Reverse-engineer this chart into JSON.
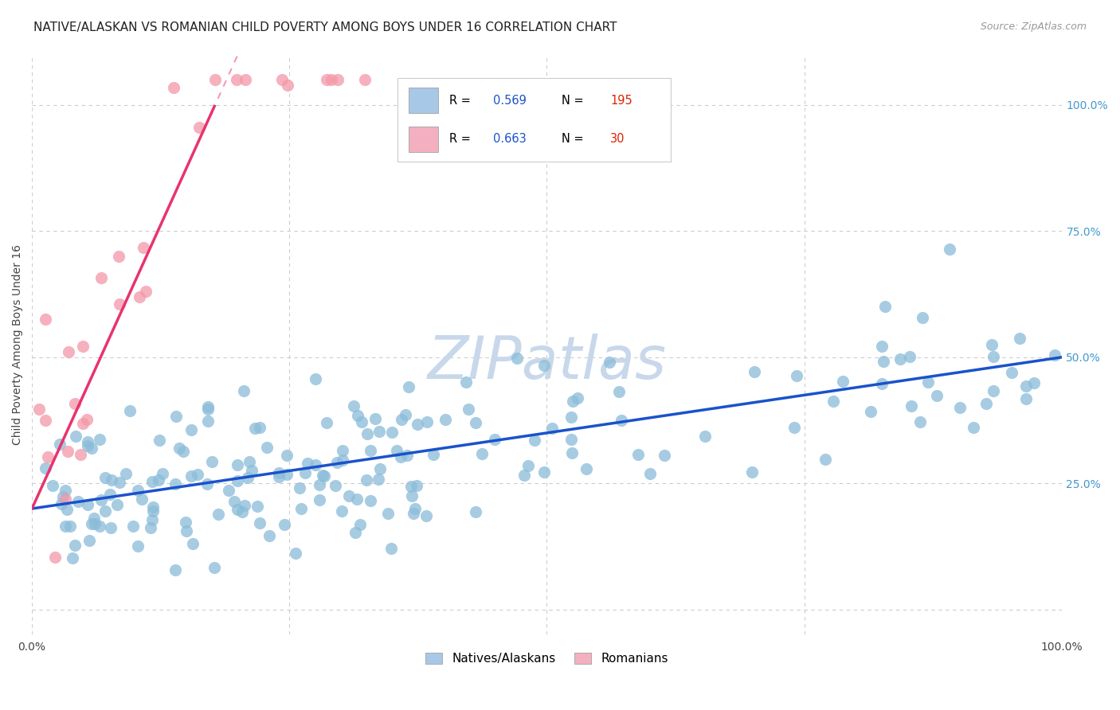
{
  "title": "NATIVE/ALASKAN VS ROMANIAN CHILD POVERTY AMONG BOYS UNDER 16 CORRELATION CHART",
  "source": "Source: ZipAtlas.com",
  "ylabel": "Child Poverty Among Boys Under 16",
  "xlim": [
    0.0,
    1.0
  ],
  "ylim": [
    -0.05,
    1.1
  ],
  "xtick_positions": [
    0.0,
    0.25,
    0.5,
    0.75,
    1.0
  ],
  "xtick_labels": [
    "0.0%",
    "",
    "",
    "",
    "100.0%"
  ],
  "ytick_labels_right": [
    "100.0%",
    "75.0%",
    "50.0%",
    "25.0%"
  ],
  "ytick_positions_right": [
    1.0,
    0.75,
    0.5,
    0.25
  ],
  "blue_R": 0.569,
  "blue_N": 195,
  "pink_R": 0.663,
  "pink_N": 30,
  "blue_scatter_color": "#8abcd9",
  "pink_scatter_color": "#f497a8",
  "blue_line_color": "#1a52cc",
  "pink_line_color": "#e8336e",
  "blue_legend_color": "#a8c8e8",
  "pink_legend_color": "#f4b0c0",
  "watermark": "ZIPatlas",
  "watermark_color": "#c8d8ea",
  "background_color": "#ffffff",
  "legend_R_color": "#1a52cc",
  "legend_N_color": "#dd2200",
  "grid_color": "#cccccc",
  "right_label_color": "#4499cc",
  "blue_intercept": 0.2,
  "blue_slope": 0.3,
  "pink_intercept": 0.2,
  "pink_slope": 4.5,
  "seed": 42
}
